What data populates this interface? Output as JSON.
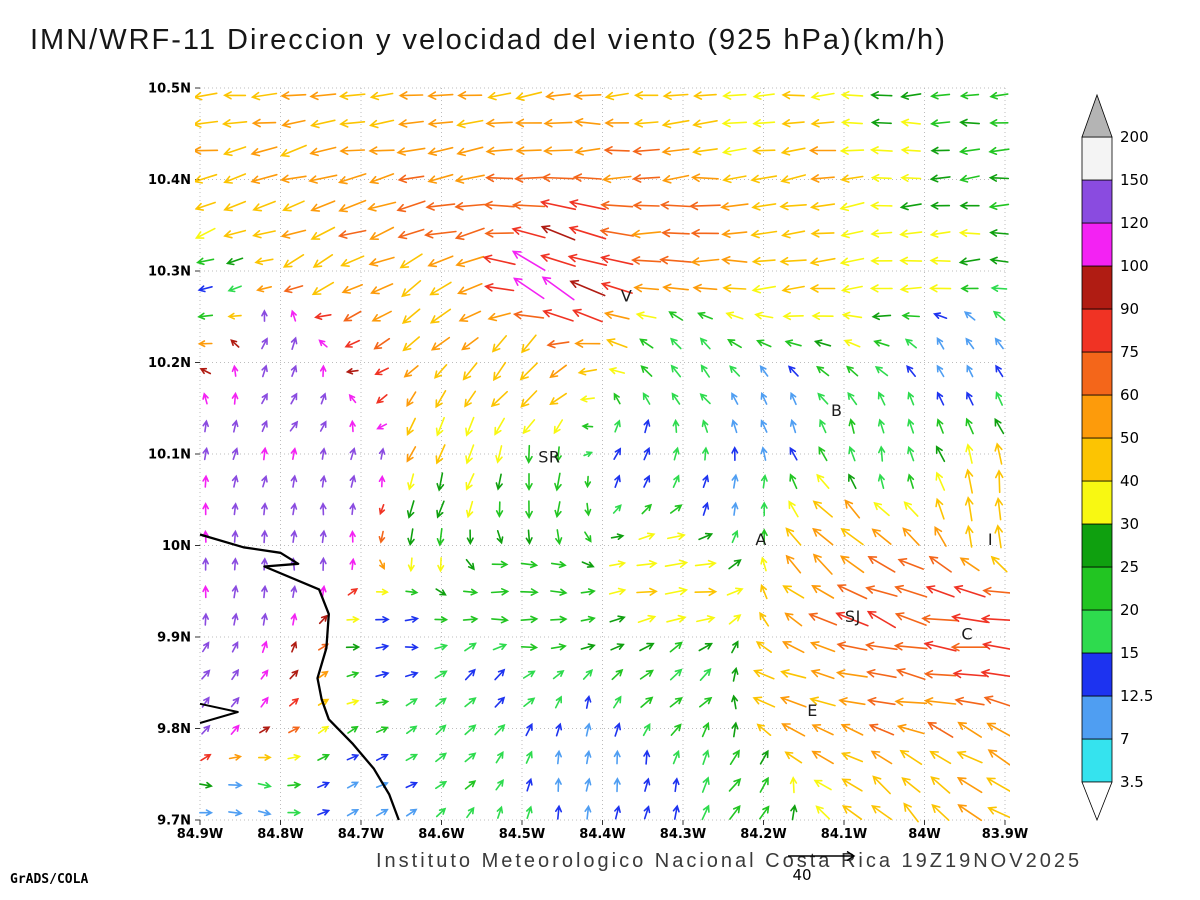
{
  "title": "IMN/WRF-11 Direccion y velocidad del viento (925 hPa)(km/h)",
  "footer": "Instituto Meteorologico Nacional Costa Rica 19Z19NOV2025",
  "credit": "GrADS/COLA",
  "chart_data": {
    "type": "scatter",
    "subtype": "wind_vector_field",
    "title": "IMN/WRF-11 Direccion y velocidad del viento (925 hPa)(km/h)",
    "model": "IMN/WRF-11",
    "variable": "Direccion y velocidad del viento",
    "level": "925 hPa",
    "units": "km/h",
    "valid_time": "19Z19NOV2025",
    "source_text": "Instituto Meteorologico Nacional Costa Rica",
    "x_range": [
      84.9,
      83.9
    ],
    "y_range": [
      9.7,
      10.5
    ],
    "x_tick_values": [
      84.9,
      84.8,
      84.7,
      84.6,
      84.5,
      84.4,
      84.3,
      84.2,
      84.1,
      84.0,
      83.9
    ],
    "x_tick_labels": [
      "84.9W",
      "84.8W",
      "84.7W",
      "84.6W",
      "84.5W",
      "84.4W",
      "84.3W",
      "84.2W",
      "84.1W",
      "84W",
      "83.9W"
    ],
    "y_tick_values": [
      10.5,
      10.4,
      10.3,
      10.2,
      10.1,
      10.0,
      9.9,
      9.8,
      9.7
    ],
    "y_tick_labels": [
      "10.5N",
      "10.4N",
      "10.3N",
      "10.2N",
      "10.1N",
      "10N",
      "9.9N",
      "9.8N",
      "9.7N"
    ],
    "grid_on": true,
    "reference_vector": {
      "value": 40,
      "label": "40"
    },
    "colorbar": {
      "levels": [
        3.5,
        7,
        12.5,
        15,
        20,
        25,
        30,
        40,
        50,
        60,
        75,
        90,
        100,
        120,
        150,
        200
      ],
      "labels": [
        "3.5",
        "7",
        "12.5",
        "15",
        "20",
        "25",
        "30",
        "40",
        "50",
        "60",
        "75",
        "90",
        "100",
        "120",
        "150",
        "200"
      ],
      "colors": [
        "#ffffff",
        "#35e3ee",
        "#4f9ef2",
        "#1d33f0",
        "#2edb4e",
        "#22c522",
        "#0fa00f",
        "#f8f812",
        "#fcc402",
        "#fd9b0b",
        "#f4661a",
        "#f03324",
        "#b01c13",
        "#f322f3",
        "#8a4be0",
        "#f4f4f4",
        "#b4b4b4"
      ]
    },
    "stations": [
      {
        "label": "V",
        "lon": 84.37,
        "lat": 10.272
      },
      {
        "label": "B",
        "lon": 84.109,
        "lat": 10.147
      },
      {
        "label": "SR",
        "lon": 84.466,
        "lat": 10.096
      },
      {
        "label": "A",
        "lon": 84.203,
        "lat": 10.006
      },
      {
        "label": "I",
        "lon": 83.918,
        "lat": 10.006
      },
      {
        "label": "SJ",
        "lon": 84.089,
        "lat": 9.922
      },
      {
        "label": "C",
        "lon": 83.947,
        "lat": 9.903
      },
      {
        "label": "E",
        "lon": 84.139,
        "lat": 9.819
      }
    ],
    "coastline": [
      [
        84.9,
        10.012
      ],
      [
        84.846,
        9.998
      ],
      [
        84.8,
        9.992
      ],
      [
        84.778,
        9.98
      ],
      [
        84.82,
        9.977
      ],
      [
        84.752,
        9.952
      ],
      [
        84.74,
        9.925
      ],
      [
        84.743,
        9.888
      ],
      [
        84.754,
        9.855
      ],
      [
        84.749,
        9.832
      ],
      [
        84.74,
        9.81
      ],
      [
        84.71,
        9.783
      ],
      [
        84.684,
        9.756
      ],
      [
        84.665,
        9.728
      ],
      [
        84.653,
        9.7
      ]
    ],
    "coastline_spit": [
      [
        84.9,
        9.827
      ],
      [
        84.853,
        9.818
      ],
      [
        84.9,
        9.806
      ]
    ],
    "wind_field": {
      "format": [
        "lon_w",
        "lat_n",
        "dir_toward_deg",
        "speed_kmh",
        "color_value_kmh"
      ],
      "grid": {
        "cols": 28,
        "rows": 27
      },
      "controls": [
        [
          84.85,
          10.47,
          268,
          42,
          46
        ],
        [
          84.68,
          10.47,
          266,
          44,
          48
        ],
        [
          84.55,
          10.47,
          264,
          46,
          52
        ],
        [
          84.35,
          10.47,
          268,
          44,
          46
        ],
        [
          84.2,
          10.47,
          270,
          40,
          38
        ],
        [
          84.05,
          10.47,
          268,
          32,
          28
        ],
        [
          83.93,
          10.47,
          268,
          28,
          24
        ],
        [
          84.82,
          10.42,
          254,
          50,
          54
        ],
        [
          84.6,
          10.42,
          258,
          52,
          56
        ],
        [
          84.35,
          10.42,
          264,
          55,
          62
        ],
        [
          84.15,
          10.42,
          262,
          48,
          50
        ],
        [
          83.95,
          10.41,
          266,
          30,
          26
        ],
        [
          84.72,
          10.37,
          252,
          55,
          58
        ],
        [
          84.6,
          10.36,
          256,
          65,
          68
        ],
        [
          84.43,
          10.32,
          283,
          85,
          82
        ],
        [
          84.47,
          10.29,
          300,
          92,
          106
        ],
        [
          84.3,
          10.33,
          268,
          60,
          64
        ],
        [
          84.15,
          10.33,
          260,
          45,
          44
        ],
        [
          84.0,
          10.31,
          264,
          35,
          32
        ],
        [
          84.62,
          10.28,
          233,
          45,
          46
        ],
        [
          84.75,
          10.31,
          244,
          42,
          44
        ],
        [
          84.88,
          10.34,
          250,
          40,
          42
        ],
        [
          84.88,
          10.29,
          258,
          14,
          13
        ],
        [
          84.8,
          10.22,
          25,
          10,
          130
        ],
        [
          84.84,
          10.1,
          15,
          9,
          130
        ],
        [
          84.86,
          9.95,
          5,
          9,
          130
        ],
        [
          84.88,
          9.83,
          40,
          9,
          130
        ],
        [
          84.76,
          10.0,
          0,
          10,
          130
        ],
        [
          84.78,
          10.15,
          30,
          9,
          130
        ],
        [
          84.7,
          10.08,
          10,
          10,
          130
        ],
        [
          84.85,
          9.71,
          100,
          12,
          10
        ],
        [
          84.7,
          9.72,
          60,
          11,
          10
        ],
        [
          84.66,
          9.9,
          85,
          12,
          13
        ],
        [
          84.6,
          10.12,
          203,
          32,
          40
        ],
        [
          84.5,
          10.2,
          218,
          40,
          46
        ],
        [
          84.48,
          10.06,
          186,
          24,
          22
        ],
        [
          84.36,
          10.1,
          25,
          13,
          13
        ],
        [
          84.3,
          10.21,
          320,
          16,
          17
        ],
        [
          84.2,
          10.14,
          340,
          12,
          9
        ],
        [
          83.96,
          10.21,
          330,
          12,
          9
        ],
        [
          84.05,
          10.1,
          350,
          16,
          17
        ],
        [
          83.92,
          10.04,
          352,
          42,
          45
        ],
        [
          84.1,
          10.0,
          315,
          52,
          55
        ],
        [
          84.3,
          9.96,
          85,
          38,
          42
        ],
        [
          84.5,
          9.94,
          90,
          24,
          22
        ],
        [
          84.24,
          10.05,
          15,
          13,
          13
        ],
        [
          84.56,
          9.84,
          45,
          15,
          15
        ],
        [
          84.42,
          9.77,
          5,
          13,
          11
        ],
        [
          84.35,
          9.71,
          10,
          14,
          12
        ],
        [
          84.22,
          9.74,
          35,
          22,
          21
        ],
        [
          84.3,
          9.86,
          50,
          20,
          20
        ],
        [
          84.15,
          9.82,
          290,
          48,
          52
        ],
        [
          84.04,
          9.86,
          280,
          62,
          65
        ],
        [
          83.94,
          9.9,
          276,
          78,
          80
        ],
        [
          84.06,
          9.93,
          292,
          72,
          78
        ],
        [
          83.93,
          9.74,
          300,
          52,
          50
        ],
        [
          84.0,
          9.71,
          315,
          45,
          44
        ],
        [
          84.62,
          10.04,
          196,
          25,
          24
        ]
      ]
    }
  }
}
